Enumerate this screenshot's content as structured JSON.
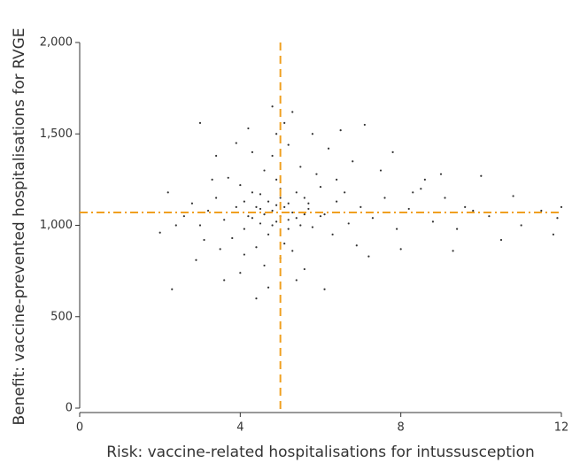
{
  "chart_data": {
    "type": "scatter",
    "x_label": "Risk: vaccine-related hospitalisations for intussusception",
    "y_label": "Benefit: vaccine-prevented hospitalisations for RVGE",
    "xlim": [
      0,
      12
    ],
    "ylim": [
      0,
      2000
    ],
    "xticks": [
      0,
      4,
      8,
      12
    ],
    "yticks": [
      0,
      500,
      {
        "value": 1000,
        "label": "1,000"
      },
      {
        "value": 1500,
        "label": "1,500"
      },
      {
        "value": 2000,
        "label": "2,000"
      }
    ],
    "color": "#333333",
    "reference_lines": {
      "x": 5,
      "y": 1070,
      "color": "#f0a020"
    },
    "series": [
      {
        "x": [
          4.8,
          5.2,
          4.5,
          5.6,
          4.1,
          5.0,
          4.7,
          5.4,
          3.9,
          6.1,
          4.3,
          5.8,
          4.9,
          5.1,
          3.6,
          6.4,
          4.6,
          5.3,
          4.0,
          6.7,
          3.4,
          5.5,
          4.4,
          6.0,
          4.2,
          5.7,
          3.8,
          6.3,
          4.8,
          5.0,
          3.2,
          7.0,
          4.5,
          5.9,
          4.1,
          6.6,
          3.7,
          5.2,
          4.6,
          7.3,
          3.0,
          6.9,
          4.3,
          5.6,
          3.5,
          7.6,
          4.9,
          5.4,
          3.3,
          7.9,
          2.8,
          6.2,
          4.0,
          8.2,
          3.1,
          5.1,
          4.7,
          8.5,
          2.6,
          6.8,
          3.9,
          7.2,
          2.9,
          8.8,
          4.4,
          5.8,
          2.4,
          9.1,
          3.6,
          6.5,
          7.5,
          9.4,
          2.2,
          4.8,
          8.0,
          9.8,
          3.4,
          6.1,
          10.2,
          2.0,
          7.8,
          8.6,
          10.5,
          5.3,
          9.0,
          11.0,
          2.3,
          7.1,
          11.5,
          3.0,
          8.3,
          9.6,
          10.8,
          4.2,
          6.4,
          5.0,
          5.1,
          4.9,
          5.2,
          4.7,
          5.3,
          4.6,
          5.5,
          4.4,
          5.0,
          4.8,
          5.6,
          4.5,
          5.2,
          4.3,
          5.7,
          4.9,
          6.0,
          4.1,
          5.4,
          11.9,
          11.8,
          12.0,
          10.0,
          9.3
        ],
        "values": [
          1080,
          1120,
          1010,
          1150,
          980,
          1200,
          950,
          1040,
          1100,
          1060,
          1180,
          990,
          1250,
          900,
          1030,
          1130,
          1300,
          860,
          1220,
          1010,
          1150,
          1320,
          880,
          1210,
          1050,
          1090,
          930,
          950,
          1380,
          820,
          1080,
          1100,
          1170,
          1280,
          840,
          1180,
          1260,
          1440,
          780,
          1040,
          1000,
          890,
          1400,
          760,
          870,
          1150,
          1500,
          700,
          1250,
          980,
          1120,
          1420,
          740,
          1090,
          920,
          1560,
          660,
          1200,
          1050,
          1350,
          1450,
          830,
          810,
          1020,
          600,
          1500,
          1000,
          1150,
          700,
          1520,
          1300,
          980,
          1180,
          1650,
          870,
          1080,
          1380,
          650,
          1050,
          960,
          1400,
          1250,
          920,
          1620,
          1280,
          1000,
          650,
          1550,
          1080,
          1560,
          1180,
          1100,
          1160,
          1530,
          1250,
          1050,
          1100,
          1020,
          980,
          1130,
          1070,
          1060,
          1000,
          1100,
          1150,
          1000,
          1060,
          1090,
          1030,
          1040,
          1120,
          1110,
          1050,
          1130,
          1180,
          1040,
          950,
          1100,
          1270,
          860
        ]
      }
    ]
  }
}
